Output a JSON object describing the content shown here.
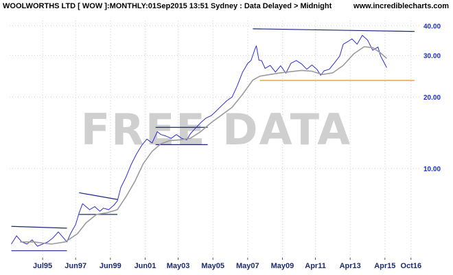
{
  "header": {
    "title": "WOOLWORTHS LTD [ WOW ]:MONTHLY:01Sep2015 13:51 Sydney : Data Delayed > Midnight",
    "site": "www.incrediblecharts.com"
  },
  "watermark": "FREE DATA",
  "colors": {
    "price": "#2b2bd6",
    "moving_average": "#9a9a9a",
    "trendline": "#1a237e",
    "support": "#e8a33a",
    "axis_labels": "#1a2fd0",
    "grid": "#cfcfcf"
  },
  "chart_data": {
    "type": "line",
    "title": "WOOLWORTHS LTD [ WOW ]:MONTHLY:01Sep2015 13:51 Sydney : Data Delayed > Midnight",
    "y_scale": "log",
    "ylim": [
      4.2,
      42
    ],
    "y_ticks": [
      {
        "value": 40,
        "label": "40.00"
      },
      {
        "value": 30,
        "label": "30.00"
      },
      {
        "value": 20,
        "label": "20.00"
      },
      {
        "value": 10,
        "label": "10.00"
      }
    ],
    "x_range": [
      1993.6,
      2017.3
    ],
    "x_ticks": [
      {
        "value": 1995.5,
        "label": "Jul95"
      },
      {
        "value": 1997.4,
        "label": "Jun97"
      },
      {
        "value": 1999.4,
        "label": "Jun99"
      },
      {
        "value": 2001.4,
        "label": "Jun01"
      },
      {
        "value": 2003.3,
        "label": "May03"
      },
      {
        "value": 2005.3,
        "label": "May05"
      },
      {
        "value": 2007.3,
        "label": "May07"
      },
      {
        "value": 2009.3,
        "label": "May09"
      },
      {
        "value": 2011.2,
        "label": "Apr11"
      },
      {
        "value": 2013.2,
        "label": "Apr13"
      },
      {
        "value": 2015.2,
        "label": "Apr15"
      },
      {
        "value": 2016.7,
        "label": "Oct16"
      }
    ],
    "grid": true,
    "series": [
      {
        "kind": "price",
        "points": [
          [
            1993.7,
            4.8
          ],
          [
            1994.0,
            5.2
          ],
          [
            1994.3,
            4.9
          ],
          [
            1994.6,
            4.8
          ],
          [
            1994.9,
            5.0
          ],
          [
            1995.2,
            4.7
          ],
          [
            1995.5,
            4.8
          ],
          [
            1995.8,
            4.9
          ],
          [
            1996.1,
            5.1
          ],
          [
            1996.4,
            5.4
          ],
          [
            1996.7,
            5.1
          ],
          [
            1996.9,
            4.9
          ],
          [
            1997.1,
            5.3
          ],
          [
            1997.4,
            5.8
          ],
          [
            1997.6,
            6.5
          ],
          [
            1997.8,
            7.1
          ],
          [
            1998.0,
            6.9
          ],
          [
            1998.2,
            6.7
          ],
          [
            1998.5,
            6.9
          ],
          [
            1998.8,
            6.6
          ],
          [
            1999.0,
            6.8
          ],
          [
            1999.3,
            6.7
          ],
          [
            1999.6,
            7.0
          ],
          [
            1999.8,
            7.3
          ],
          [
            2000.0,
            8.3
          ],
          [
            2000.3,
            9.2
          ],
          [
            2000.6,
            10.4
          ],
          [
            2000.9,
            11.5
          ],
          [
            2001.2,
            12.5
          ],
          [
            2001.5,
            13.3
          ],
          [
            2001.8,
            12.8
          ],
          [
            2002.1,
            14.3
          ],
          [
            2002.3,
            13.9
          ],
          [
            2002.6,
            13.7
          ],
          [
            2002.9,
            13.4
          ],
          [
            2003.2,
            13.9
          ],
          [
            2003.5,
            13.4
          ],
          [
            2003.8,
            13.2
          ],
          [
            2004.0,
            14.0
          ],
          [
            2004.3,
            14.8
          ],
          [
            2004.6,
            15.6
          ],
          [
            2004.9,
            16.3
          ],
          [
            2005.2,
            16.7
          ],
          [
            2005.5,
            17.5
          ],
          [
            2005.8,
            18.4
          ],
          [
            2006.1,
            19.3
          ],
          [
            2006.4,
            20.0
          ],
          [
            2006.7,
            22.3
          ],
          [
            2007.0,
            25.4
          ],
          [
            2007.3,
            27.7
          ],
          [
            2007.5,
            28.6
          ],
          [
            2007.7,
            31.6
          ],
          [
            2007.8,
            32.9
          ],
          [
            2007.95,
            28.6
          ],
          [
            2008.1,
            28.5
          ],
          [
            2008.3,
            26.4
          ],
          [
            2008.6,
            27.2
          ],
          [
            2008.9,
            25.5
          ],
          [
            2009.2,
            27.1
          ],
          [
            2009.5,
            25.2
          ],
          [
            2009.8,
            27.8
          ],
          [
            2010.1,
            28.5
          ],
          [
            2010.4,
            27.6
          ],
          [
            2010.7,
            26.2
          ],
          [
            2011.0,
            27.3
          ],
          [
            2011.3,
            26.1
          ],
          [
            2011.5,
            24.7
          ],
          [
            2011.7,
            25.8
          ],
          [
            2012.0,
            26.2
          ],
          [
            2012.3,
            27.9
          ],
          [
            2012.6,
            29.8
          ],
          [
            2012.8,
            33.4
          ],
          [
            2013.1,
            34.4
          ],
          [
            2013.3,
            35.2
          ],
          [
            2013.6,
            33.4
          ],
          [
            2013.9,
            36.4
          ],
          [
            2014.2,
            34.8
          ],
          [
            2014.5,
            31.5
          ],
          [
            2014.8,
            32.5
          ],
          [
            2014.95,
            29.8
          ],
          [
            2015.1,
            28.4
          ],
          [
            2015.3,
            26.6
          ]
        ]
      },
      {
        "kind": "moving_average",
        "points": [
          [
            1994.2,
            4.9
          ],
          [
            1995.0,
            4.9
          ],
          [
            1996.0,
            4.8
          ],
          [
            1996.8,
            4.9
          ],
          [
            1997.5,
            5.3
          ],
          [
            1998.0,
            5.9
          ],
          [
            1998.6,
            6.4
          ],
          [
            1999.2,
            6.5
          ],
          [
            1999.8,
            6.7
          ],
          [
            2000.3,
            7.6
          ],
          [
            2000.8,
            8.8
          ],
          [
            2001.3,
            10.5
          ],
          [
            2001.8,
            11.8
          ],
          [
            2002.3,
            12.7
          ],
          [
            2002.8,
            13.1
          ],
          [
            2003.4,
            13.2
          ],
          [
            2004.0,
            13.4
          ],
          [
            2004.6,
            14.3
          ],
          [
            2005.2,
            15.6
          ],
          [
            2005.8,
            16.8
          ],
          [
            2006.4,
            18.1
          ],
          [
            2007.0,
            20.5
          ],
          [
            2007.6,
            23.6
          ],
          [
            2008.0,
            24.5
          ],
          [
            2008.6,
            24.9
          ],
          [
            2009.2,
            25.3
          ],
          [
            2009.8,
            25.6
          ],
          [
            2010.4,
            25.9
          ],
          [
            2011.0,
            25.7
          ],
          [
            2011.6,
            24.9
          ],
          [
            2012.2,
            25.3
          ],
          [
            2012.8,
            27.2
          ],
          [
            2013.4,
            30.4
          ],
          [
            2014.0,
            32.6
          ],
          [
            2014.5,
            32.3
          ],
          [
            2014.95,
            30.7
          ],
          [
            2015.3,
            29.1
          ]
        ]
      }
    ],
    "trendlines": [
      {
        "kind": "channel-top",
        "from": [
          1993.7,
          5.7
        ],
        "to": [
          1996.9,
          5.6
        ]
      },
      {
        "kind": "channel-bottom",
        "from": [
          1993.7,
          4.5
        ],
        "to": [
          1996.9,
          4.5
        ]
      },
      {
        "kind": "channel-top",
        "from": [
          1997.6,
          7.9
        ],
        "to": [
          1999.8,
          7.4
        ]
      },
      {
        "kind": "channel-bottom",
        "from": [
          1997.6,
          6.4
        ],
        "to": [
          1999.8,
          6.4
        ]
      },
      {
        "kind": "channel-top",
        "from": [
          2002.0,
          14.9
        ],
        "to": [
          2005.0,
          14.9
        ]
      },
      {
        "kind": "channel-bottom",
        "from": [
          2002.0,
          12.6
        ],
        "to": [
          2005.0,
          12.6
        ]
      },
      {
        "kind": "resistance",
        "from": [
          2007.6,
          38.8
        ],
        "to": [
          2016.9,
          37.8
        ]
      },
      {
        "kind": "support",
        "from": [
          2008.0,
          23.5
        ],
        "to": [
          2016.9,
          23.5
        ]
      }
    ]
  }
}
